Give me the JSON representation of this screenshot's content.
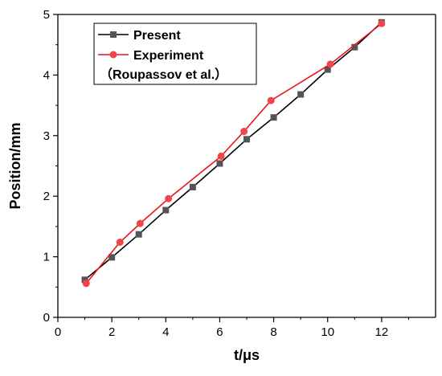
{
  "chart_data": {
    "type": "line",
    "title": "",
    "xlabel": "t/μs",
    "ylabel": "Position/mm",
    "xlim": [
      0,
      14
    ],
    "ylim": [
      0,
      5
    ],
    "xticks": [
      "0",
      "2",
      "4",
      "6",
      "8",
      "10",
      "12"
    ],
    "yticks": [
      "0",
      "1",
      "2",
      "3",
      "4",
      "5"
    ],
    "grid": false,
    "legend_position": "top-left",
    "series": [
      {
        "name": "Present",
        "color": "#000000",
        "marker": "square",
        "marker_color": "#555555",
        "x": [
          1,
          2,
          3,
          4,
          5,
          6,
          7,
          8,
          9,
          10,
          11,
          12
        ],
        "y": [
          0.62,
          0.99,
          1.37,
          1.77,
          2.15,
          2.54,
          2.94,
          3.3,
          3.68,
          4.09,
          4.46,
          4.87
        ]
      },
      {
        "name": "Experiment",
        "name_line2": "（Roupassov et al.）",
        "color": "#e8141b",
        "marker": "circle",
        "marker_color": "#f2444b",
        "x": [
          1.05,
          2.3,
          3.05,
          4.1,
          6.05,
          6.9,
          7.9,
          10.1,
          12.0
        ],
        "y": [
          0.56,
          1.24,
          1.55,
          1.96,
          2.66,
          3.07,
          3.58,
          4.18,
          4.85
        ]
      }
    ]
  }
}
